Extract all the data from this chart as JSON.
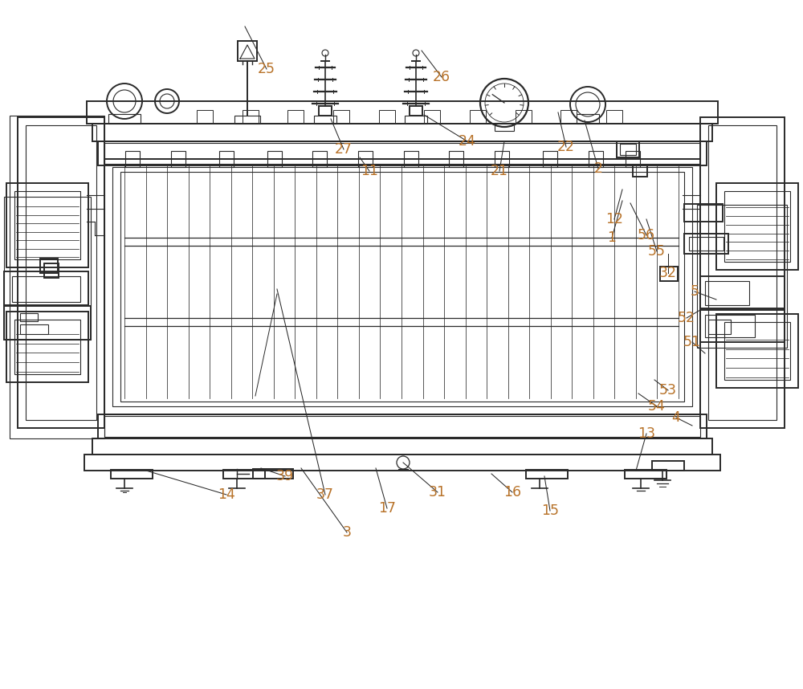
{
  "bg_color": "#ffffff",
  "line_color": "#2a2a2a",
  "label_color": "#b8732a",
  "fig_width": 10.0,
  "fig_height": 8.58,
  "dpi": 100,
  "leaders": [
    [
      "25",
      3.32,
      7.72,
      3.05,
      8.25
    ],
    [
      "26",
      5.5,
      7.62,
      5.25,
      7.95
    ],
    [
      "27",
      4.28,
      6.72,
      4.12,
      7.1
    ],
    [
      "24",
      5.82,
      6.82,
      5.28,
      7.15
    ],
    [
      "11",
      4.6,
      6.45,
      4.48,
      6.62
    ],
    [
      "21",
      6.22,
      6.45,
      6.28,
      6.82
    ],
    [
      "22",
      7.05,
      6.75,
      6.95,
      7.18
    ],
    [
      "2",
      7.45,
      6.48,
      7.28,
      7.08
    ],
    [
      "12",
      7.65,
      5.85,
      7.75,
      6.22
    ],
    [
      "56",
      8.05,
      5.65,
      7.85,
      6.05
    ],
    [
      "55",
      8.18,
      5.45,
      8.05,
      5.85
    ],
    [
      "32",
      8.32,
      5.18,
      8.32,
      5.42
    ],
    [
      "5",
      8.65,
      4.95,
      8.92,
      4.85
    ],
    [
      "52",
      8.55,
      4.62,
      8.72,
      4.72
    ],
    [
      "51",
      8.62,
      4.32,
      8.78,
      4.18
    ],
    [
      "4",
      8.42,
      3.38,
      8.62,
      3.28
    ],
    [
      "54",
      8.18,
      3.52,
      7.95,
      3.68
    ],
    [
      "53",
      8.32,
      3.72,
      8.15,
      3.85
    ],
    [
      "13",
      8.05,
      3.18,
      7.92,
      2.72
    ],
    [
      "15",
      6.85,
      2.22,
      6.78,
      2.65
    ],
    [
      "16",
      6.38,
      2.45,
      6.12,
      2.68
    ],
    [
      "31",
      5.45,
      2.45,
      5.02,
      2.82
    ],
    [
      "17",
      4.82,
      2.25,
      4.68,
      2.75
    ],
    [
      "3",
      4.32,
      1.95,
      3.75,
      2.75
    ],
    [
      "37",
      4.05,
      2.42,
      3.45,
      4.98
    ],
    [
      "39",
      3.55,
      2.65,
      3.25,
      2.75
    ],
    [
      "14",
      2.82,
      2.42,
      1.82,
      2.72
    ],
    [
      "1",
      7.62,
      5.62,
      7.75,
      6.08
    ]
  ]
}
